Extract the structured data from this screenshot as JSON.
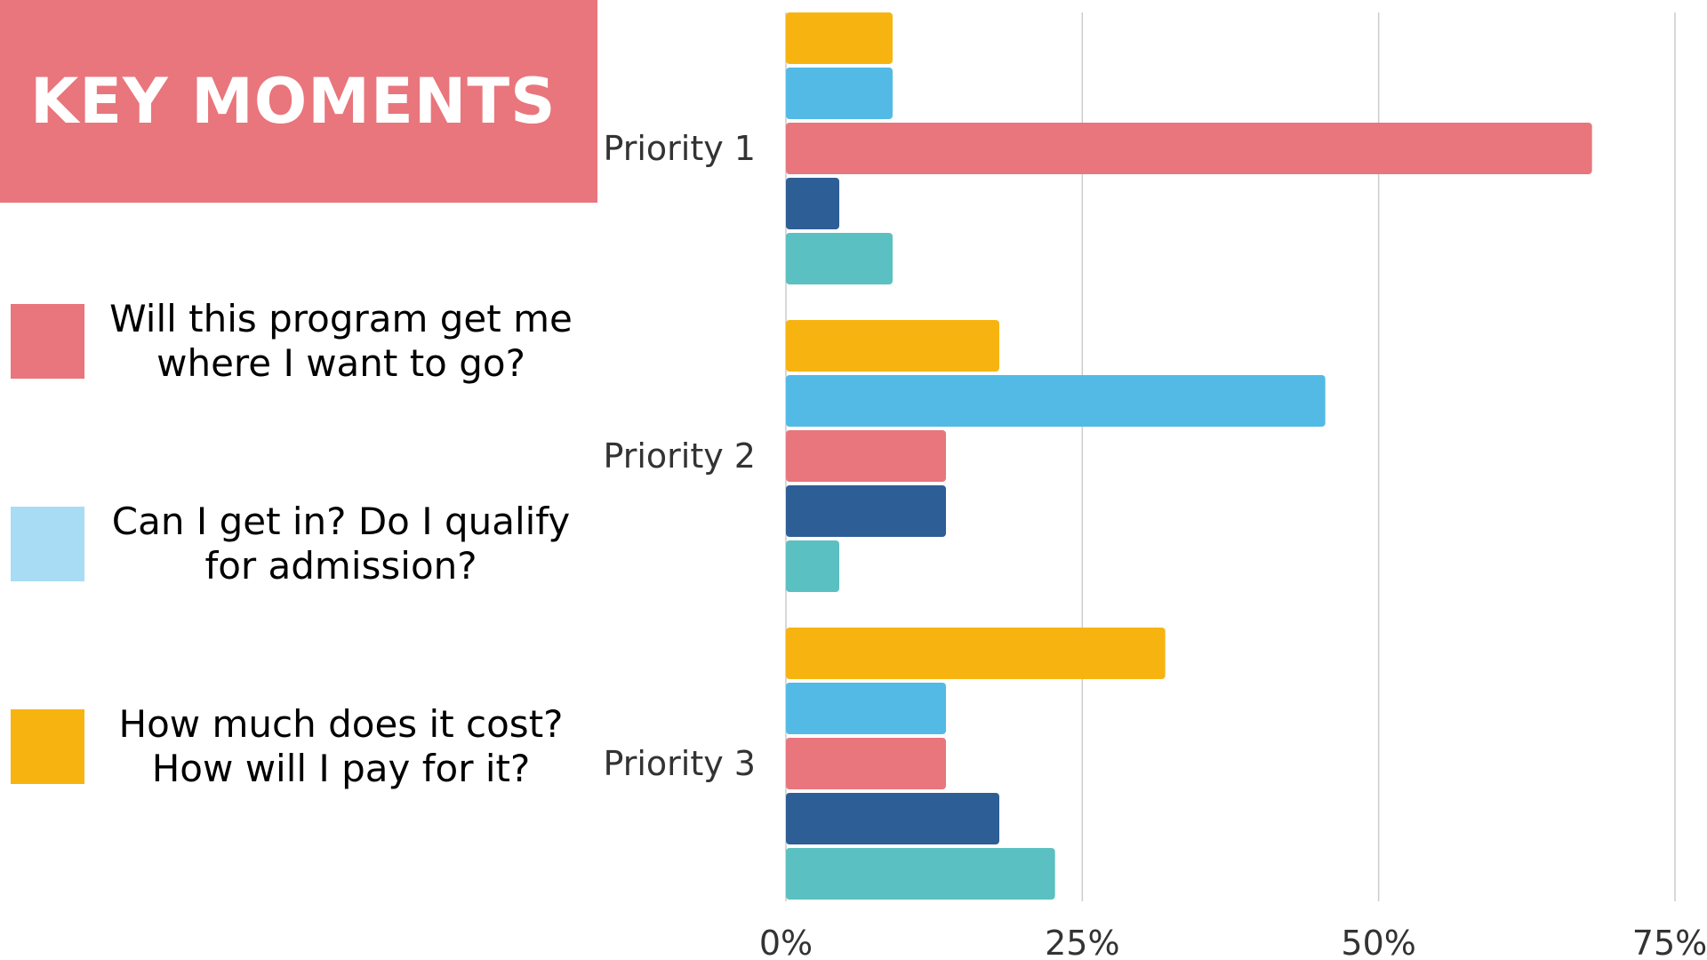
{
  "banner": {
    "title": "KEY MOMENTS",
    "color": "#E8767C"
  },
  "legend": {
    "items": [
      {
        "label": "Will this program get me\nwhere I want to go?",
        "color": "#E8767C"
      },
      {
        "label": "Can I get in? Do I qualify\nfor admission?",
        "color": "#A8DCF4"
      },
      {
        "label": "How much does it cost?\nHow will I pay for it?",
        "color": "#F7B411"
      }
    ]
  },
  "chart_data": {
    "type": "bar",
    "orientation": "horizontal",
    "categories": [
      "Priority 1",
      "Priority 2",
      "Priority 3"
    ],
    "series": [
      {
        "color": "#F7B411",
        "values": [
          9,
          18,
          32
        ]
      },
      {
        "color": "#52BAE5",
        "values": [
          9,
          45.5,
          13.5
        ]
      },
      {
        "color": "#E8767C",
        "values": [
          68,
          13.5,
          13.5
        ]
      },
      {
        "color": "#2E5E96",
        "values": [
          4.5,
          13.5,
          18
        ]
      },
      {
        "color": "#5BC0C1",
        "values": [
          9,
          4.5,
          22.7
        ]
      }
    ],
    "xticks": [
      "0%",
      "25%",
      "50%",
      "75%"
    ],
    "xlim": [
      0,
      75
    ],
    "grid": true,
    "gridline_color": "#CCCCCC"
  }
}
